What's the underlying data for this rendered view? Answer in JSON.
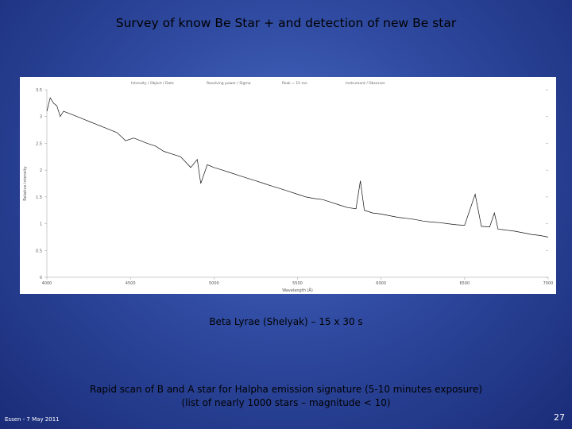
{
  "slide": {
    "title": "Survey of know Be Star + and detection of new Be star",
    "caption_spectrum": "Beta Lyrae (Shelyak) – 15 x 30 s",
    "caption_line1": "Rapid scan of B and A star for Halpha emission signature (5-10 minutes exposure)",
    "caption_line2": "(list of nearly 1000 stars – magnitude < 10)",
    "footer_left": "Essen - 7 May 2011",
    "page_number": "27"
  },
  "chart_data": {
    "type": "line",
    "title": "",
    "xlabel": "Wavelength (Å)",
    "ylabel": "Relative intensity",
    "header_text": [
      "Intensity / Object / Date",
      "Resolving power / Sigma",
      "Peak = 15 mn",
      "Instrument / Observer"
    ],
    "xlim": [
      4000,
      7000
    ],
    "ylim": [
      0,
      3.5
    ],
    "x_ticks": [
      "4000",
      "4500",
      "5000",
      "5500",
      "6000",
      "6500",
      "7000"
    ],
    "y_ticks": [
      "0",
      "0.5",
      "1",
      "1.5",
      "2",
      "2.5",
      "3",
      "3.5"
    ],
    "grid": false,
    "series": [
      {
        "x": [
          4000,
          4020,
          4040,
          4060,
          4080,
          4100,
          4140,
          4180,
          4220,
          4260,
          4300,
          4340,
          4380,
          4420,
          4471,
          4520,
          4560,
          4600,
          4650,
          4700,
          4750,
          4800,
          4861,
          4900,
          4921,
          4960,
          5000,
          5050,
          5100,
          5150,
          5200,
          5250,
          5300,
          5350,
          5400,
          5450,
          5500,
          5550,
          5600,
          5650,
          5700,
          5750,
          5800,
          5850,
          5876,
          5900,
          5950,
          6000,
          6050,
          6100,
          6150,
          6200,
          6250,
          6300,
          6350,
          6400,
          6450,
          6500,
          6563,
          6600,
          6650,
          6678,
          6700,
          6750,
          6800,
          6850,
          6900,
          6950,
          7000
        ],
        "y": [
          3.1,
          3.35,
          3.25,
          3.2,
          3.0,
          3.1,
          3.05,
          3.0,
          2.95,
          2.9,
          2.85,
          2.8,
          2.75,
          2.7,
          2.55,
          2.6,
          2.55,
          2.5,
          2.45,
          2.35,
          2.3,
          2.25,
          2.05,
          2.2,
          1.75,
          2.1,
          2.05,
          2.0,
          1.95,
          1.9,
          1.85,
          1.8,
          1.75,
          1.7,
          1.65,
          1.6,
          1.55,
          1.5,
          1.47,
          1.45,
          1.4,
          1.35,
          1.3,
          1.28,
          1.8,
          1.25,
          1.2,
          1.18,
          1.15,
          1.12,
          1.1,
          1.08,
          1.05,
          1.03,
          1.02,
          1.0,
          0.98,
          0.97,
          1.55,
          0.95,
          0.94,
          1.2,
          0.9,
          0.88,
          0.86,
          0.83,
          0.8,
          0.78,
          0.75
        ]
      }
    ]
  }
}
